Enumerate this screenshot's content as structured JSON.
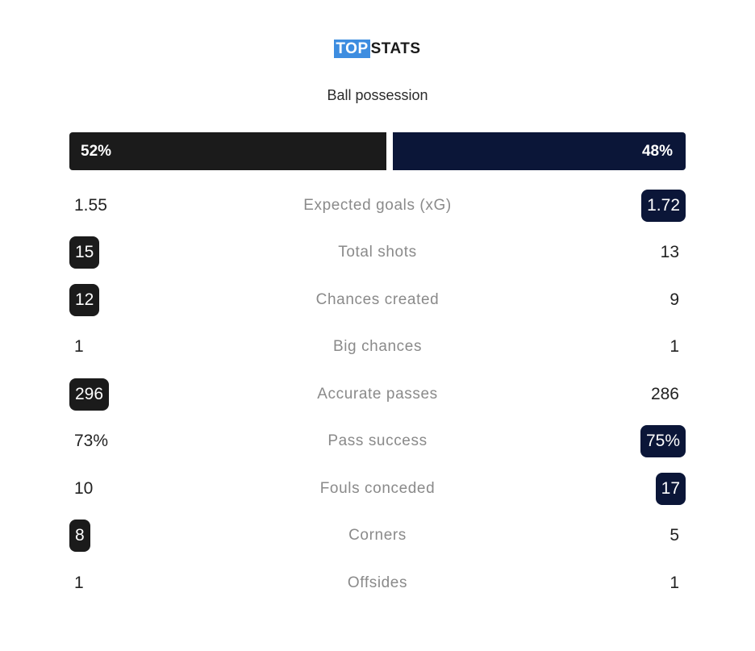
{
  "header": {
    "title_highlight": "TOP",
    "title_rest": "STATS",
    "section": "Ball possession"
  },
  "possession": {
    "home": "52%",
    "away": "48%",
    "home_share": 52,
    "away_share": 48
  },
  "colors": {
    "home": "#1b1b1b",
    "away": "#0b1638",
    "title_highlight": "#3d8de0"
  },
  "stats": [
    {
      "label": "Expected goals (xG)",
      "home": "1.55",
      "away": "1.72",
      "leader": "away"
    },
    {
      "label": "Total shots",
      "home": "15",
      "away": "13",
      "leader": "home"
    },
    {
      "label": "Chances created",
      "home": "12",
      "away": "9",
      "leader": "home"
    },
    {
      "label": "Big chances",
      "home": "1",
      "away": "1",
      "leader": "none"
    },
    {
      "label": "Accurate passes",
      "home": "296",
      "away": "286",
      "leader": "home"
    },
    {
      "label": "Pass success",
      "home": "73%",
      "away": "75%",
      "leader": "away"
    },
    {
      "label": "Fouls conceded",
      "home": "10",
      "away": "17",
      "leader": "away"
    },
    {
      "label": "Corners",
      "home": "8",
      "away": "5",
      "leader": "home"
    },
    {
      "label": "Offsides",
      "home": "1",
      "away": "1",
      "leader": "none"
    }
  ]
}
